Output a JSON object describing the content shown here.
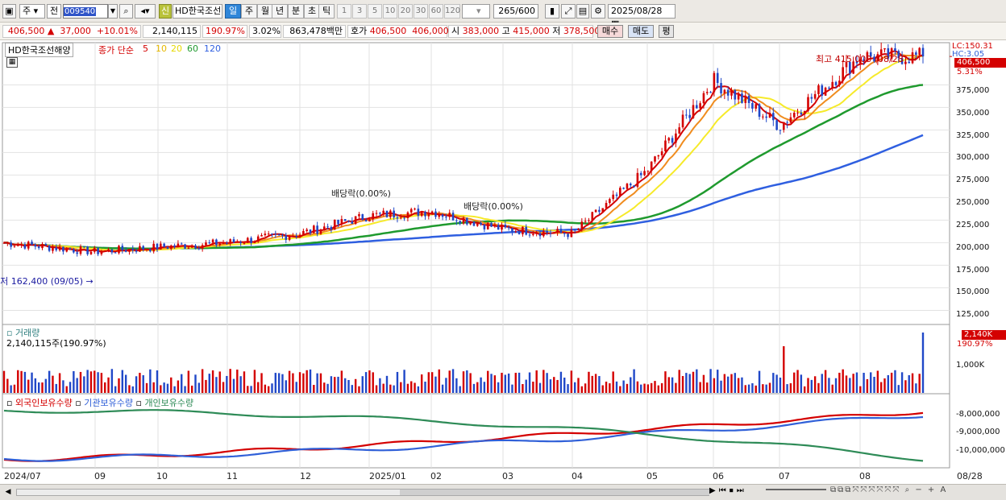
{
  "toolbar": {
    "mode1": "주",
    "mode2": "전",
    "code": "009540",
    "stock_name": "HD한국조선",
    "sin_label": "신",
    "periods": [
      "일",
      "주",
      "월",
      "년",
      "분",
      "초",
      "틱"
    ],
    "active_period": "일",
    "numbers": [
      "1",
      "3",
      "5",
      "10",
      "20",
      "30",
      "60",
      "120"
    ],
    "count_current": "265",
    "count_total": "/600",
    "date": "2025/08/28"
  },
  "quote": {
    "price": "406,500",
    "arrow": "▲",
    "change": "37,000",
    "change_pct": "+10.01%",
    "volume": "2,140,115",
    "volume_ratio": "190.97%",
    "turnover": "3.02%",
    "amount": "863,478백만",
    "ask_label": "호가",
    "ask1": "406,500",
    "ask2": "406,000",
    "open_label": "시",
    "open": "383,000",
    "high_label": "고",
    "high": "415,000",
    "low_label": "저",
    "low": "378,500",
    "buy_label": "매수",
    "sell_label": "매도",
    "avg_label": "평"
  },
  "price_panel": {
    "legend_name": "HD한국조선해양",
    "legend_close": "종가 단순",
    "ma_labels": [
      "5",
      "10",
      "20",
      "60",
      "120"
    ],
    "ma_colors": {
      "ma5": "#d40000",
      "ma10": "#f08c1e",
      "ma20": "#f6ea2a",
      "ma60": "#1f9a2e",
      "ma120": "#2f5fe0"
    },
    "high_note": "최고 415,000 (08/28)",
    "low_note": "최저 162,400 (09/05)",
    "dividend_note": "배당락(0.00%)",
    "lc": "LC:150.31",
    "hc": "HC:3.05",
    "last_price": "406,500",
    "last_pct": "5.31%",
    "y_ticks": [
      "375,000",
      "350,000",
      "325,000",
      "300,000",
      "275,000",
      "250,000",
      "225,000",
      "200,000",
      "175,000",
      "150,000",
      "125,000"
    ]
  },
  "volume_panel": {
    "title": "거래량",
    "value": "2,140,115주(190.97%)",
    "badge": "2,140K",
    "badge_pct": "190.97%",
    "y_tick": "1,000K"
  },
  "holding_panel": {
    "legend": [
      "외국인보유수량",
      "기관보유수량",
      "개인보유수량"
    ],
    "colors": [
      "#d40000",
      "#3060d8",
      "#2e8b57"
    ],
    "y_ticks": [
      "-8,000,000",
      "-9,000,000",
      "-10,000,000"
    ]
  },
  "x_axis": [
    "2024/07",
    "09",
    "10",
    "11",
    "12",
    "2025/01",
    "02",
    "03",
    "04",
    "05",
    "06",
    "07",
    "08",
    "08/28"
  ],
  "chart_data": {
    "type": "candlestick",
    "title": "HD한국조선해양",
    "ylim": [
      112000,
      420000
    ],
    "months": [
      "2024/07",
      "09",
      "10",
      "11",
      "12",
      "2025/01",
      "02",
      "03",
      "04",
      "05",
      "06",
      "07",
      "08"
    ],
    "close_monthly_approx": [
      200000,
      190000,
      195000,
      200000,
      210000,
      230000,
      235000,
      215000,
      210000,
      280000,
      380000,
      330000,
      406500
    ],
    "last_bar": {
      "date": "2025/08/28",
      "open": 383000,
      "high": 415000,
      "low": 378500,
      "close": 406500,
      "volume": 2140115
    }
  }
}
